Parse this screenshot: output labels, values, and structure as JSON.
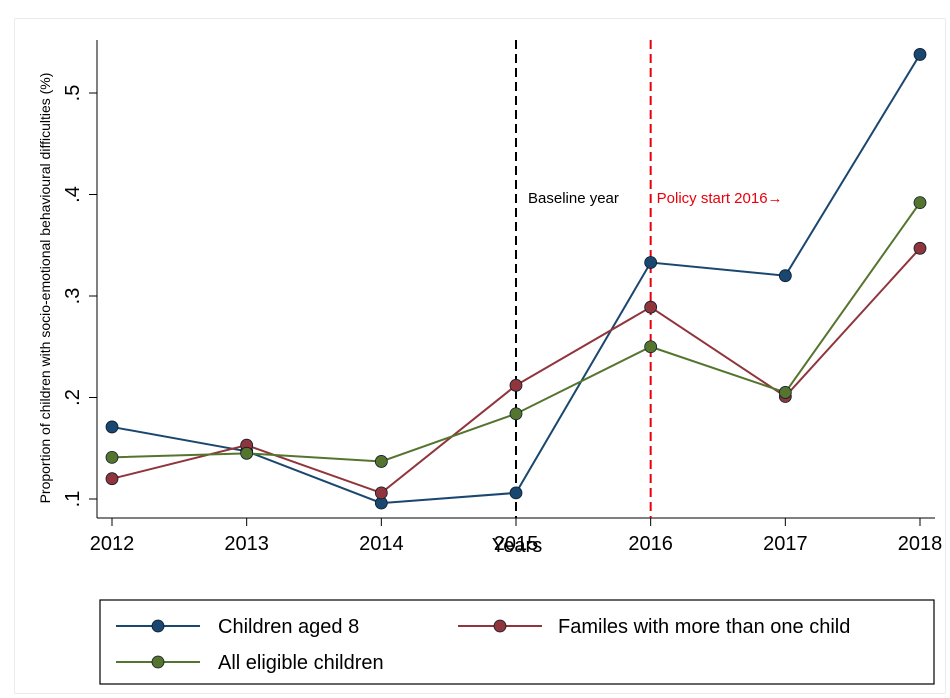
{
  "chart_data": {
    "type": "line",
    "xlabel": "Years",
    "ylabel": "Proportion of children with socio-emotional behavioural difficulties (%)",
    "x": [
      2012,
      2013,
      2014,
      2015,
      2016,
      2017,
      2018
    ],
    "xlim": [
      2012,
      2018
    ],
    "ylim": [
      0.085,
      0.545
    ],
    "y_ticks": [
      0.1,
      0.2,
      0.3,
      0.4,
      0.5
    ],
    "y_tick_labels": [
      ".1",
      ".2",
      ".3",
      ".4",
      ".5"
    ],
    "x_tick_labels": [
      "2012",
      "2013",
      "2014",
      "2015",
      "2016",
      "2017",
      "2018"
    ],
    "grid": false,
    "series": [
      {
        "name": "Children aged 8",
        "color": "#1a476f",
        "values": [
          0.171,
          0.147,
          0.096,
          0.106,
          0.333,
          0.32,
          0.538
        ]
      },
      {
        "name": "Familes with more than one child",
        "color": "#90353b",
        "values": [
          0.12,
          0.153,
          0.106,
          0.212,
          0.289,
          0.201,
          0.347
        ]
      },
      {
        "name": "All eligible children",
        "color": "#55752f",
        "values": [
          0.141,
          0.145,
          0.137,
          0.184,
          0.25,
          0.205,
          0.392
        ]
      }
    ],
    "vlines": [
      {
        "x": 2015,
        "label": "Baseline year",
        "color": "#000000"
      },
      {
        "x": 2016,
        "label": "Policy start 2016→",
        "color": "#e8000b"
      }
    ],
    "legend_position": "bottom"
  }
}
